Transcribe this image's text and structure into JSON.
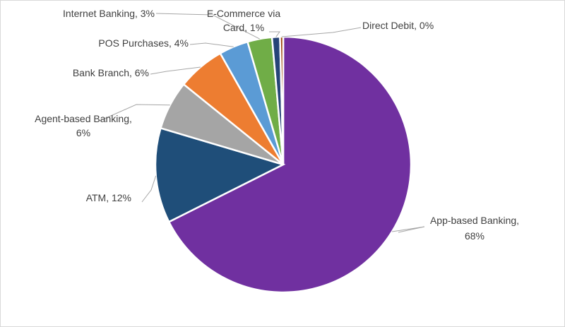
{
  "chart_data": {
    "type": "pie",
    "title": "",
    "slices": [
      {
        "name": "App-based Banking",
        "value": 68,
        "label": "App-based Banking, 68%",
        "color": "#7030a0"
      },
      {
        "name": "ATM",
        "value": 12,
        "label": "ATM, 12%",
        "color": "#1f4e79"
      },
      {
        "name": "Agent-based Banking",
        "value": 6,
        "label": "Agent-based Banking, 6%",
        "color": "#a5a5a5"
      },
      {
        "name": "Bank Branch",
        "value": 6,
        "label": "Bank Branch, 6%",
        "color": "#ed7d31"
      },
      {
        "name": "POS Purchases",
        "value": 4,
        "label": "POS Purchases, 4%",
        "color": "#5b9bd5"
      },
      {
        "name": "Internet Banking",
        "value": 3,
        "label": "Internet Banking, 3%",
        "color": "#70ad47"
      },
      {
        "name": "E-Commerce via Card",
        "value": 1,
        "label": "E-Commerce via Card, 1%",
        "color": "#264478"
      },
      {
        "name": "Direct Debit",
        "value": 0,
        "label": "Direct Debit, 0%",
        "color": "#9e480e"
      }
    ],
    "legend": "none",
    "data_labels": "outside with leader lines"
  }
}
